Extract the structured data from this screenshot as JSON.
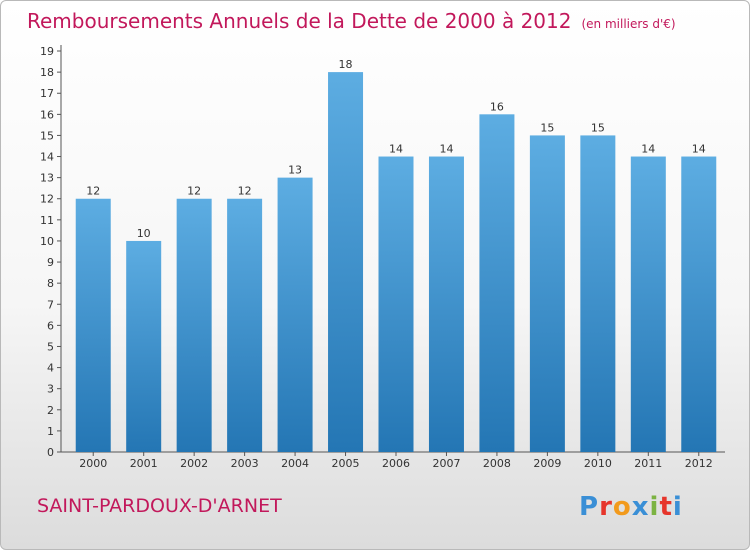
{
  "title": "Remboursements Annuels de la Dette de 2000 à 2012",
  "unit_note": "(en milliers d'€)",
  "commune": "SAINT-PARDOUX-D'ARNET",
  "logo": {
    "text": "Proxiti",
    "letter_colors": [
      "#3a8fd6",
      "#e6352b",
      "#f29a1c",
      "#3a8fd6",
      "#7cb342",
      "#e6352b",
      "#3a8fd6"
    ]
  },
  "colors": {
    "accent": "#c2185b",
    "bar_top": "#5dade2",
    "bar_bottom": "#2476b4"
  },
  "chart_data": {
    "type": "bar",
    "categories": [
      "2000",
      "2001",
      "2002",
      "2003",
      "2004",
      "2005",
      "2006",
      "2007",
      "2008",
      "2009",
      "2010",
      "2011",
      "2012"
    ],
    "values": [
      12,
      10,
      12,
      12,
      13,
      18,
      14,
      14,
      16,
      15,
      15,
      14,
      14
    ],
    "title": "Remboursements Annuels de la Dette de 2000 à 2012",
    "ylabel": "",
    "xlabel": "",
    "ylim": [
      0,
      19
    ],
    "yticks": [
      0,
      1,
      2,
      3,
      4,
      5,
      6,
      7,
      8,
      9,
      10,
      11,
      12,
      13,
      14,
      15,
      16,
      17,
      18,
      19
    ],
    "grid": false,
    "data_labels": true
  }
}
